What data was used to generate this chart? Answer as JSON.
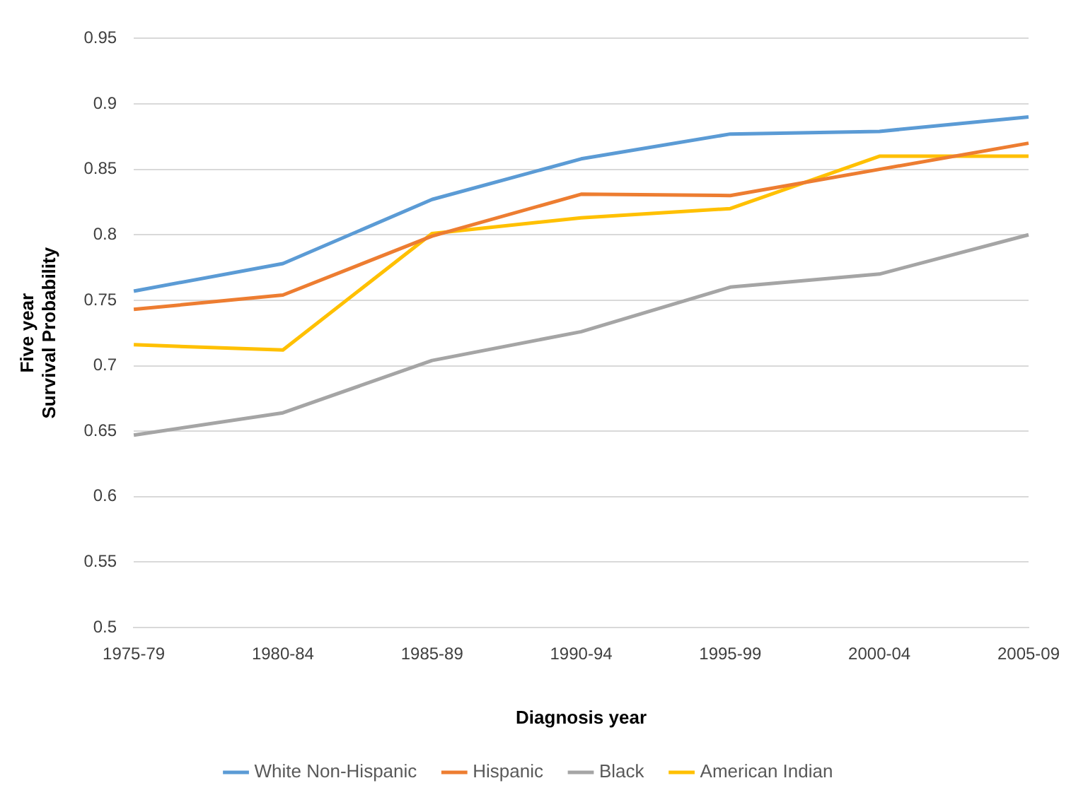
{
  "chart_data": {
    "type": "line",
    "xlabel": "Diagnosis year",
    "ylabel": "Five year\nSurvival Probability",
    "categories": [
      "1975-79",
      "1980-84",
      "1985-89",
      "1990-94",
      "1995-99",
      "2000-04",
      "2005-09"
    ],
    "series": [
      {
        "name": "White Non-Hispanic",
        "color": "#5b9bd5",
        "values": [
          0.757,
          0.778,
          0.827,
          0.858,
          0.877,
          0.879,
          0.89
        ]
      },
      {
        "name": "Hispanic",
        "color": "#ed7d31",
        "values": [
          0.743,
          0.754,
          0.799,
          0.831,
          0.83,
          0.85,
          0.87
        ]
      },
      {
        "name": "Black",
        "color": "#a5a5a5",
        "values": [
          0.647,
          0.664,
          0.704,
          0.726,
          0.76,
          0.77,
          0.8
        ]
      },
      {
        "name": "American Indian",
        "color": "#ffc000",
        "values": [
          0.716,
          0.712,
          0.801,
          0.813,
          0.82,
          0.86,
          0.86
        ]
      }
    ],
    "ylim": [
      0.5,
      0.95
    ],
    "yticks": [
      0.5,
      0.55,
      0.6,
      0.65,
      0.7,
      0.75,
      0.8,
      0.85,
      0.9,
      0.95
    ],
    "grid": "y",
    "legend": "bottom",
    "marker": "none",
    "line_style": "solid"
  }
}
